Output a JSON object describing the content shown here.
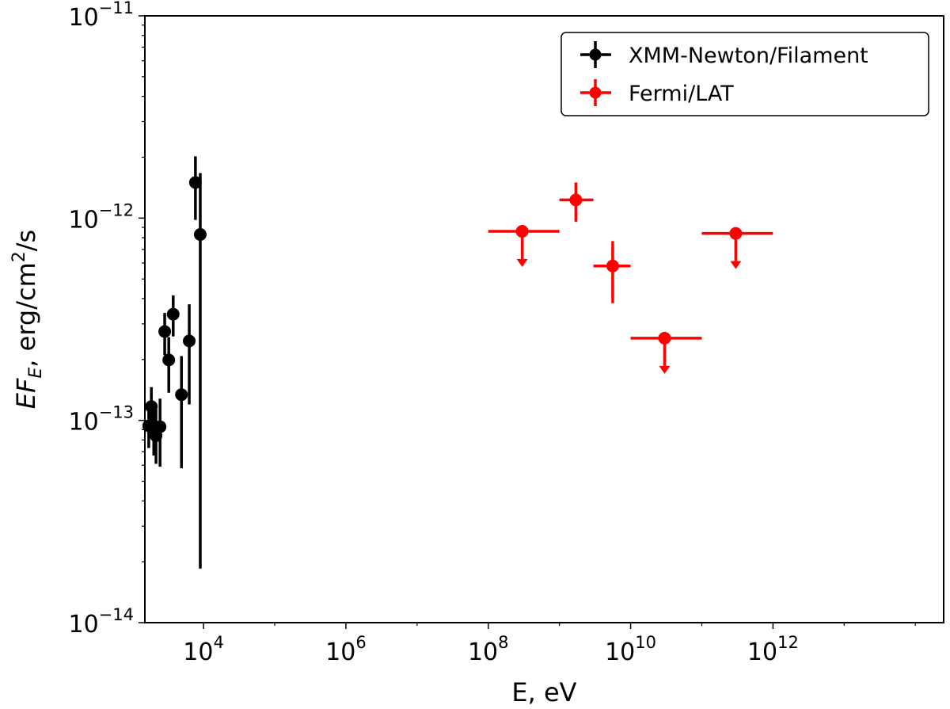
{
  "chart_data": {
    "type": "scatter",
    "title": "",
    "xlabel": "E, eV",
    "ylabel_parts": {
      "main": "EF",
      "sub": "E",
      "units": ", erg/cm",
      "units_sup": "2",
      "units_tail": "/s"
    },
    "xscale": "log",
    "yscale": "log",
    "xlim": [
      1500,
      250000000000000
    ],
    "ylim": [
      1e-14,
      1e-11
    ],
    "grid": false,
    "legend_placement": "top-right",
    "x_ticks": [
      {
        "value": 10000,
        "base": "10",
        "exp": "4"
      },
      {
        "value": 1000000,
        "base": "10",
        "exp": "6"
      },
      {
        "value": 100000000,
        "base": "10",
        "exp": "8"
      },
      {
        "value": 10000000000,
        "base": "10",
        "exp": "10"
      },
      {
        "value": 1000000000000,
        "base": "10",
        "exp": "12"
      }
    ],
    "y_ticks": [
      {
        "value": 1e-14,
        "base": "10",
        "exp": "−14"
      },
      {
        "value": 1e-13,
        "base": "10",
        "exp": "−13"
      },
      {
        "value": 1e-12,
        "base": "10",
        "exp": "−12"
      },
      {
        "value": 1e-11,
        "base": "10",
        "exp": "−11"
      }
    ],
    "series": [
      {
        "name": "XMM-Newton/Filament",
        "color": "#000000",
        "points": [
          {
            "x": 1700,
            "y": 9.4e-14,
            "ylo": 7.3e-14,
            "yhi": 1.12e-13
          },
          {
            "x": 1850,
            "y": 1.17e-13,
            "ylo": 9.2e-14,
            "yhi": 1.46e-13
          },
          {
            "x": 2000,
            "y": 8.7e-14,
            "ylo": 6.7e-14,
            "yhi": 1.1e-13
          },
          {
            "x": 2150,
            "y": 8.4e-14,
            "ylo": 6.1e-14,
            "yhi": 1.13e-13
          },
          {
            "x": 2450,
            "y": 9.3e-14,
            "ylo": 5.9e-14,
            "yhi": 1.28e-13
          },
          {
            "x": 2850,
            "y": 2.75e-13,
            "ylo": 2.1e-13,
            "yhi": 3.4e-13
          },
          {
            "x": 3250,
            "y": 1.99e-13,
            "ylo": 1.37e-13,
            "yhi": 2.58e-13
          },
          {
            "x": 3750,
            "y": 3.35e-13,
            "ylo": 2.6e-13,
            "yhi": 4.15e-13
          },
          {
            "x": 4900,
            "y": 1.34e-13,
            "ylo": 5.8e-14,
            "yhi": 2.08e-13
          },
          {
            "x": 6300,
            "y": 2.47e-13,
            "ylo": 1.2e-13,
            "yhi": 3.75e-13
          },
          {
            "x": 7700,
            "y": 1.5e-12,
            "ylo": 9.8e-13,
            "yhi": 2.02e-12
          },
          {
            "x": 9000,
            "y": 8.3e-13,
            "ylo": 1.85e-14,
            "yhi": 1.67e-12
          }
        ]
      },
      {
        "name": "Fermi/LAT",
        "color": "#ff0000",
        "points": [
          {
            "x": 300000000,
            "xlo": 100000000,
            "xhi": 1000000000,
            "y": 8.6e-13,
            "upper_limit": true
          },
          {
            "x": 1700000000,
            "xlo": 1000000000,
            "xhi": 3000000000,
            "y": 1.23e-12,
            "ylo": 9.6e-13,
            "yhi": 1.5e-12
          },
          {
            "x": 5600000000,
            "xlo": 3000000000,
            "xhi": 10000000000,
            "y": 5.8e-13,
            "ylo": 3.8e-13,
            "yhi": 7.7e-13
          },
          {
            "x": 30000000000,
            "xlo": 10000000000,
            "xhi": 100000000000,
            "y": 2.55e-13,
            "upper_limit": true
          },
          {
            "x": 300000000000,
            "xlo": 100000000000,
            "xhi": 1000000000000,
            "y": 8.4e-13,
            "upper_limit": true
          }
        ]
      }
    ]
  }
}
